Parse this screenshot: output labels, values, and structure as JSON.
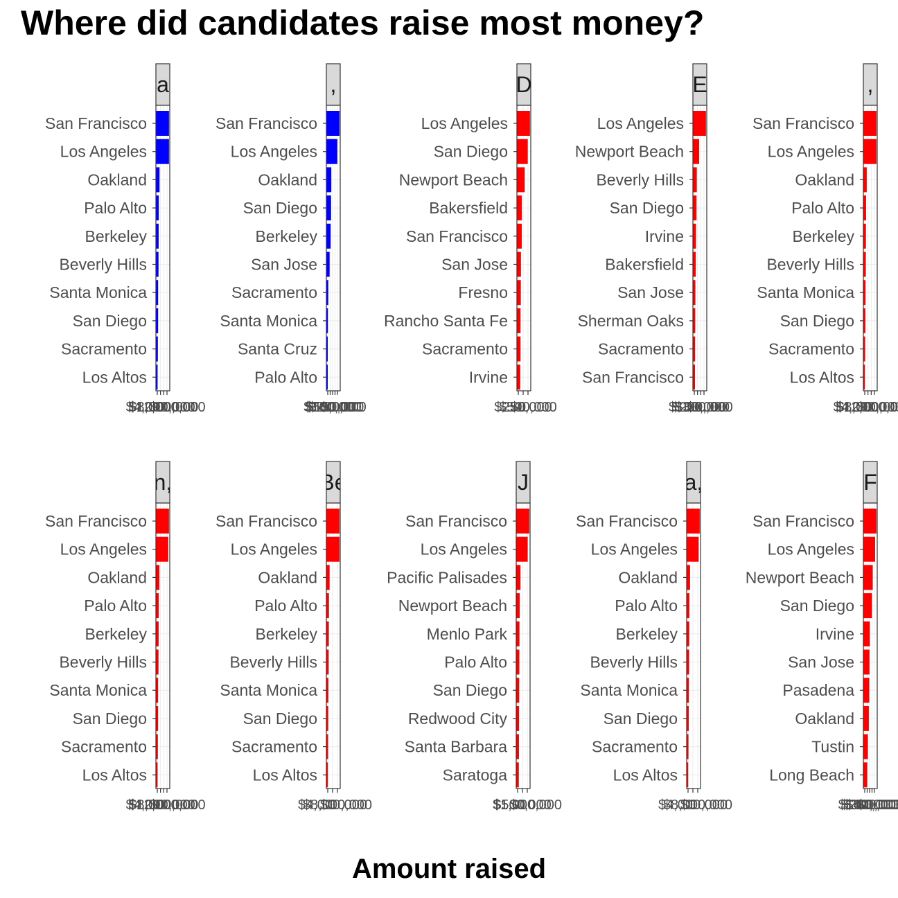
{
  "title": "Where did candidates raise most money?",
  "xlabel": "Amount raised",
  "chart_data": [
    {
      "type": "bar",
      "orientation": "horizontal",
      "strip": "a",
      "color": "#0000ff",
      "categories": [
        "San Francisco",
        "Los Angeles",
        "Oakland",
        "Palo Alto",
        "Berkeley",
        "Beverly Hills",
        "Santa Monica",
        "San Diego",
        "Sacramento",
        "Los Altos"
      ],
      "values": [
        1,
        1,
        0.28,
        0.22,
        0.21,
        0.2,
        0.17,
        0.17,
        0.15,
        0.13
      ],
      "xlim": [
        0,
        1.06
      ],
      "tick_labels": [
        "$0",
        "$4,000,000",
        "$8,000,000",
        "$12,000,000"
      ]
    },
    {
      "type": "bar",
      "orientation": "horizontal",
      "strip": ",",
      "color": "#0000ff",
      "categories": [
        "San Francisco",
        "Los Angeles",
        "Oakland",
        "San Diego",
        "Berkeley",
        "San Jose",
        "Sacramento",
        "Santa Monica",
        "Santa Cruz",
        "Palo Alto"
      ],
      "values": [
        1,
        0.84,
        0.38,
        0.36,
        0.33,
        0.25,
        0.15,
        0.12,
        0.1,
        0.08
      ],
      "xlim": [
        0,
        1.06
      ],
      "tick_labels": [
        "$0",
        "$50,000",
        "$100,000",
        "$150,000",
        "$200,000"
      ]
    },
    {
      "type": "bar",
      "orientation": "horizontal",
      "strip": "D",
      "color": "#ff0000",
      "categories": [
        "Los Angeles",
        "San Diego",
        "Newport Beach",
        "Bakersfield",
        "San Francisco",
        "San Jose",
        "Fresno",
        "Rancho Santa Fe",
        "Sacramento",
        "Irvine"
      ],
      "values": [
        1,
        0.83,
        0.6,
        0.38,
        0.37,
        0.31,
        0.3,
        0.28,
        0.28,
        0.26
      ],
      "xlim": [
        0,
        1.06
      ],
      "tick_labels": [
        "$0",
        "$250,000",
        "$500,000"
      ]
    },
    {
      "type": "bar",
      "orientation": "horizontal",
      "strip": "E",
      "color": "#ff0000",
      "categories": [
        "Los Angeles",
        "Newport Beach",
        "Beverly Hills",
        "San Diego",
        "Irvine",
        "Bakersfield",
        "San Jose",
        "Sherman Oaks",
        "Sacramento",
        "San Francisco"
      ],
      "values": [
        1,
        0.48,
        0.3,
        0.28,
        0.24,
        0.22,
        0.19,
        0.18,
        0.17,
        0.16
      ],
      "xlim": [
        0,
        1.06
      ],
      "tick_labels": [
        "$0",
        "$100,000",
        "$200,000",
        "$300,000"
      ]
    },
    {
      "type": "bar",
      "orientation": "horizontal",
      "strip": ",",
      "color": "#ff0000",
      "categories": [
        "San Francisco",
        "Los Angeles",
        "Oakland",
        "Palo Alto",
        "Berkeley",
        "Beverly Hills",
        "Santa Monica",
        "San Diego",
        "Sacramento",
        "Los Altos"
      ],
      "values": [
        1,
        1,
        0.26,
        0.21,
        0.2,
        0.19,
        0.17,
        0.16,
        0.14,
        0.12
      ],
      "xlim": [
        0,
        1.06
      ],
      "tick_labels": [
        "$0",
        "$4,000,000",
        "$8,000,000",
        "$12,000,000"
      ]
    },
    {
      "type": "bar",
      "orientation": "horizontal",
      "strip": "n,",
      "color": "#ff0000",
      "categories": [
        "San Francisco",
        "Los Angeles",
        "Oakland",
        "Palo Alto",
        "Berkeley",
        "Beverly Hills",
        "Santa Monica",
        "San Diego",
        "Sacramento",
        "Los Altos"
      ],
      "values": [
        1,
        0.95,
        0.27,
        0.22,
        0.21,
        0.2,
        0.17,
        0.17,
        0.15,
        0.13
      ],
      "xlim": [
        0,
        1.06
      ],
      "tick_labels": [
        "$0",
        "$4,000,000",
        "$8,000,000",
        "$12,000,000"
      ]
    },
    {
      "type": "bar",
      "orientation": "horizontal",
      "strip": "Be",
      "color": "#ff0000",
      "categories": [
        "San Francisco",
        "Los Angeles",
        "Oakland",
        "Palo Alto",
        "Berkeley",
        "Beverly Hills",
        "Santa Monica",
        "San Diego",
        "Sacramento",
        "Los Altos"
      ],
      "values": [
        1,
        1,
        0.25,
        0.2,
        0.19,
        0.18,
        0.16,
        0.15,
        0.14,
        0.12
      ],
      "xlim": [
        0,
        1.06
      ],
      "tick_labels": [
        "$0",
        "$4,000,000",
        "$8,000,000"
      ]
    },
    {
      "type": "bar",
      "orientation": "horizontal",
      "strip": "J",
      "color": "#ff0000",
      "categories": [
        "San Francisco",
        "Los Angeles",
        "Pacific Palisades",
        "Newport Beach",
        "Menlo Park",
        "Palo Alto",
        "San Diego",
        "Redwood City",
        "Santa Barbara",
        "Saratoga"
      ],
      "values": [
        1,
        0.88,
        0.33,
        0.27,
        0.25,
        0.24,
        0.23,
        0.22,
        0.21,
        0.2
      ],
      "xlim": [
        0,
        1.06
      ],
      "tick_labels": [
        "$0",
        "$500,000",
        "$1,000,000"
      ]
    },
    {
      "type": "bar",
      "orientation": "horizontal",
      "strip": "a,",
      "color": "#ff0000",
      "categories": [
        "San Francisco",
        "Los Angeles",
        "Oakland",
        "Palo Alto",
        "Berkeley",
        "Beverly Hills",
        "Santa Monica",
        "San Diego",
        "Sacramento",
        "Los Altos"
      ],
      "values": [
        1,
        0.92,
        0.26,
        0.21,
        0.2,
        0.19,
        0.17,
        0.16,
        0.14,
        0.12
      ],
      "xlim": [
        0,
        1.06
      ],
      "tick_labels": [
        "$0",
        "$4,000,000",
        "$8,000,000"
      ]
    },
    {
      "type": "bar",
      "orientation": "horizontal",
      "strip": "F",
      "color": "#ff0000",
      "categories": [
        "San Francisco",
        "Los Angeles",
        "Newport Beach",
        "San Diego",
        "Irvine",
        "San Jose",
        "Pasadena",
        "Oakland",
        "Tustin",
        "Long Beach"
      ],
      "values": [
        1,
        0.9,
        0.72,
        0.66,
        0.5,
        0.47,
        0.45,
        0.42,
        0.35,
        0.3
      ],
      "xlim": [
        0,
        1.06
      ],
      "tick_labels": [
        "$0",
        "$100,000",
        "$200,000",
        "$300,000",
        "$400,000"
      ]
    }
  ]
}
